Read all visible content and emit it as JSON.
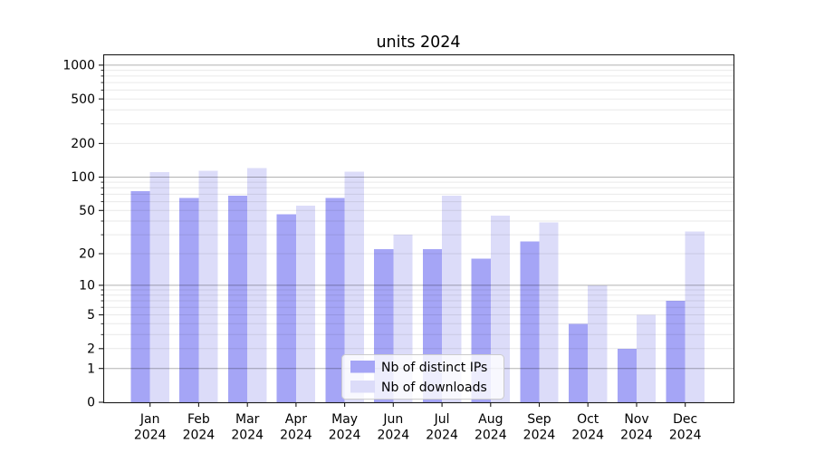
{
  "title": "units 2024",
  "chart_data": {
    "type": "bar",
    "title": "units 2024",
    "xlabel": "",
    "ylabel": "",
    "yscale": "log1p",
    "grid": true,
    "ylim": [
      0,
      1300
    ],
    "y_ticks": [
      0,
      1,
      2,
      5,
      10,
      20,
      50,
      100,
      200,
      500,
      1000
    ],
    "y_major_gridlines": [
      1,
      10,
      100,
      1000
    ],
    "y_minor_gridlines": [
      2,
      3,
      4,
      5,
      6,
      7,
      8,
      9,
      20,
      30,
      40,
      50,
      60,
      70,
      80,
      90,
      200,
      300,
      400,
      500,
      600,
      700,
      800,
      900
    ],
    "categories": [
      "Jan",
      "Feb",
      "Mar",
      "Apr",
      "May",
      "Jun",
      "Jul",
      "Aug",
      "Sep",
      "Oct",
      "Nov",
      "Dec"
    ],
    "year": "2024",
    "legend_position": "lower center",
    "series": [
      {
        "name": "Nb of distinct IPs",
        "color": "#a5a5f6",
        "values": [
          75,
          65,
          68,
          46,
          65,
          22,
          22,
          18,
          26,
          4,
          2,
          7
        ]
      },
      {
        "name": "Nb of downloads",
        "color": "#dcdcf9",
        "values": [
          111,
          114,
          121,
          55,
          112,
          30,
          68,
          45,
          39,
          10,
          5,
          32
        ]
      }
    ],
    "colors": {
      "background": "#ffffff",
      "spine": "#1a1a1a",
      "major_grid": "#b3b3b3",
      "minor_grid": "#e9e9e9",
      "legend_border": "#cccccc",
      "legend_background": "#ffffff"
    }
  }
}
